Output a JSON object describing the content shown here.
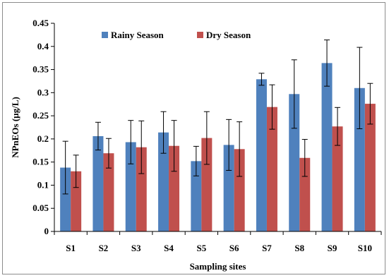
{
  "chart_data": {
    "type": "bar",
    "title": "",
    "xlabel": "Sampling sites",
    "ylabel": "NPnEOs (µg/L)",
    "ylim": [
      0,
      0.45
    ],
    "yticks": [
      "0",
      "0.05",
      "0.1",
      "0.15",
      "0.2",
      "0.25",
      "0.3",
      "0.35",
      "0.4",
      "0.45"
    ],
    "categories": [
      "S1",
      "S2",
      "S3",
      "S4",
      "S5",
      "S6",
      "S7",
      "S8",
      "S9",
      "S10"
    ],
    "grid": false,
    "legend_position": "top-left",
    "series": [
      {
        "name": "Rainy Season",
        "color": "#4f81bd",
        "values": [
          0.138,
          0.206,
          0.193,
          0.214,
          0.152,
          0.187,
          0.329,
          0.297,
          0.364,
          0.31
        ],
        "error": [
          0.057,
          0.03,
          0.047,
          0.045,
          0.032,
          0.055,
          0.013,
          0.074,
          0.05,
          0.088
        ]
      },
      {
        "name": "Dry Season",
        "color": "#c0504d",
        "values": [
          0.13,
          0.169,
          0.182,
          0.185,
          0.202,
          0.178,
          0.269,
          0.159,
          0.227,
          0.276
        ],
        "error": [
          0.035,
          0.032,
          0.057,
          0.055,
          0.057,
          0.059,
          0.048,
          0.04,
          0.041,
          0.044
        ]
      }
    ]
  }
}
